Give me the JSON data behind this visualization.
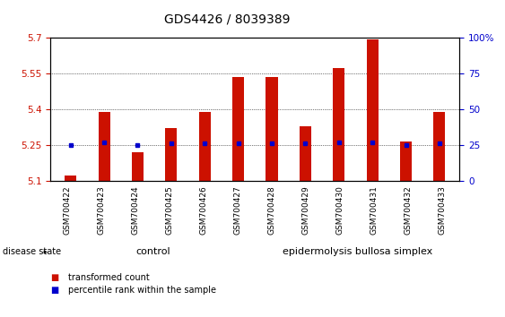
{
  "title": "GDS4426 / 8039389",
  "samples": [
    "GSM700422",
    "GSM700423",
    "GSM700424",
    "GSM700425",
    "GSM700426",
    "GSM700427",
    "GSM700428",
    "GSM700429",
    "GSM700430",
    "GSM700431",
    "GSM700432",
    "GSM700433"
  ],
  "transformed_count": [
    5.12,
    5.39,
    5.22,
    5.32,
    5.39,
    5.535,
    5.535,
    5.33,
    5.575,
    5.695,
    5.265,
    5.39
  ],
  "percentile_rank": [
    25,
    27,
    25,
    26,
    26,
    26,
    26,
    26,
    27,
    27,
    25,
    26
  ],
  "ylim_left": [
    5.1,
    5.7
  ],
  "ylim_right": [
    0,
    100
  ],
  "yticks_left": [
    5.1,
    5.25,
    5.4,
    5.55,
    5.7
  ],
  "yticks_right": [
    0,
    25,
    50,
    75,
    100
  ],
  "ytick_labels_left": [
    "5.1",
    "5.25",
    "5.4",
    "5.55",
    "5.7"
  ],
  "ytick_labels_right": [
    "0",
    "25",
    "50",
    "75",
    "100%"
  ],
  "bar_color": "#cc1100",
  "dot_color": "#0000cc",
  "bar_bottom": 5.1,
  "n_control": 6,
  "n_ebs": 6,
  "control_label": "control",
  "ebs_label": "epidermolysis bullosa simplex",
  "control_color": "#ccffcc",
  "ebs_color": "#55dd55",
  "disease_state_label": "disease state",
  "legend_bar_label": "transformed count",
  "legend_dot_label": "percentile rank within the sample",
  "grid_color": "#000000",
  "background_color": "#ffffff",
  "plot_bg_color": "#ffffff",
  "title_fontsize": 10,
  "tick_fontsize": 7.5,
  "xtick_fontsize": 6.5,
  "label_gray": "#cccccc",
  "bar_width": 0.35
}
